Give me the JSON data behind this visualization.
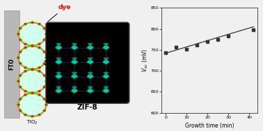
{
  "x_data": [
    0,
    5,
    10,
    15,
    20,
    25,
    30,
    42
  ],
  "y_data": [
    743,
    757,
    752,
    762,
    770,
    775,
    782,
    798
  ],
  "fit_x": [
    0,
    42
  ],
  "fit_y": [
    742,
    805
  ],
  "xlabel": "Growth time (min)",
  "ylim": [
    600,
    850
  ],
  "xlim": [
    -2,
    44
  ],
  "yticks": [
    600,
    650,
    700,
    750,
    800,
    850
  ],
  "xticks": [
    0,
    10,
    20,
    30,
    40
  ],
  "marker_color": "#333333",
  "line_color": "#333333",
  "background": "#f0f0f0",
  "fto_label": "FTO",
  "tio2_label": "TiO",
  "dye_label": "dye",
  "zif8_label": "ZIF-8",
  "crystal_color": "#00ccaa",
  "crystal_edge": "#008866",
  "lattice_color": "#003344"
}
